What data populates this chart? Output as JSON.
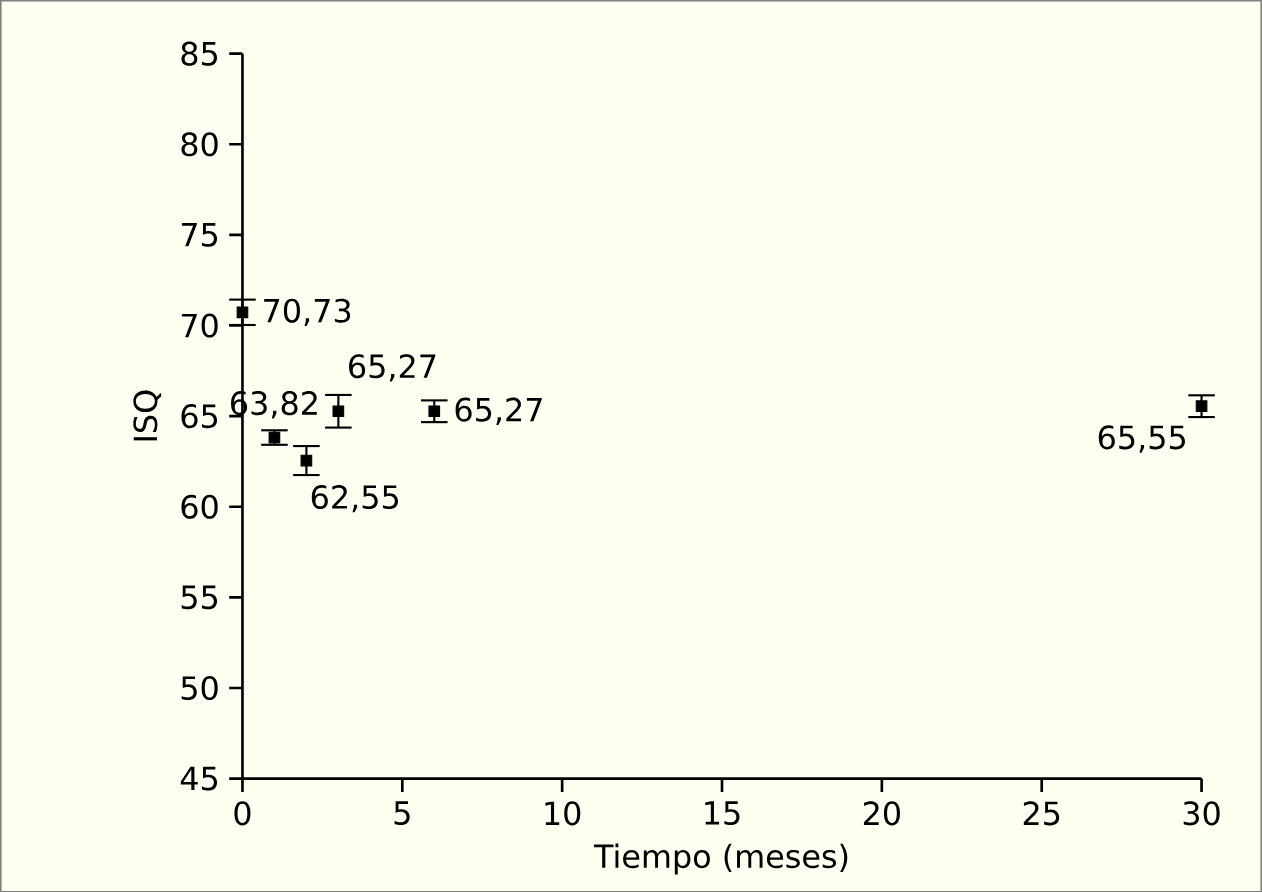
{
  "chart_data": {
    "type": "scatter",
    "xlabel": "Tiempo (meses)",
    "ylabel": "ISQ",
    "x": [
      0,
      1,
      2,
      3,
      6,
      30
    ],
    "values": [
      70.73,
      63.82,
      62.55,
      65.27,
      65.27,
      65.55
    ],
    "errors": [
      0.7,
      0.4,
      0.8,
      0.9,
      0.6,
      0.6
    ],
    "value_labels": [
      "70,73",
      "63,82",
      "62,55",
      "65,27",
      "65,27",
      "65,55"
    ],
    "color": "#000000",
    "marker": "square",
    "xlim": [
      0,
      30
    ],
    "xticks": [
      0,
      5,
      10,
      15,
      20,
      25,
      30
    ],
    "ylim": [
      45,
      85
    ],
    "yticks": [
      45,
      50,
      55,
      60,
      65,
      70,
      75,
      80,
      85
    ],
    "grid": false
  }
}
